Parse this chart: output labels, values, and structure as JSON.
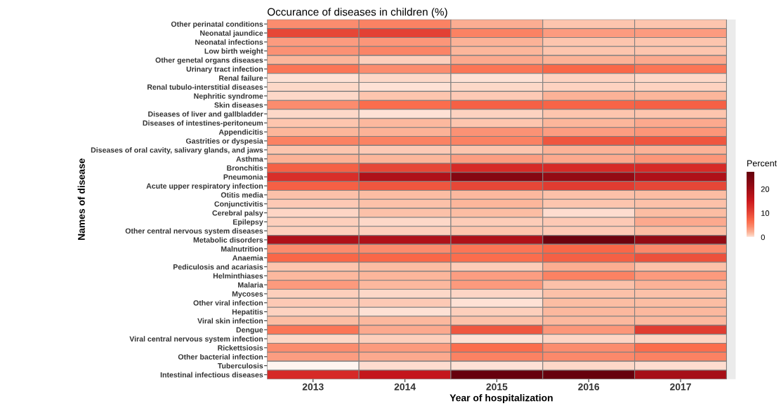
{
  "chart_data": {
    "type": "heatmap",
    "title": "Occurance of diseases in children (%)",
    "xlabel": "Year of hospitalization",
    "ylabel": "Names of disease",
    "clabel": "Percent",
    "categories": [
      "2013",
      "2014",
      "2015",
      "2016",
      "2017"
    ],
    "y_categories": [
      "Other perinatal conditions",
      "Neonatal jaundice",
      "Neonatal infections",
      "Low birth weight",
      "Other genetal organs diseases",
      "Urinary tract infection",
      "Renal failure",
      "Renal tubulo-interstitial diseases",
      "Nephritic syndrome",
      "Skin diseases",
      "Diseases of liver and gallbladder",
      "Diseases of intestines-peritoneum",
      "Appendicitis",
      "Gastrities or dyspesia",
      "Diseases of oral cavity, salivary glands, and jaws",
      "Asthma",
      "Bronchitis",
      "Pneumonia",
      "Acute upper respiratory infection",
      "Otitis media",
      "Conjunctivitis",
      "Cerebral palsy",
      "Epilepsy",
      "Other central nervous system diseases",
      "Metabolic disorders",
      "Malnutrition",
      "Anaemia",
      "Pediculosis and acariasis",
      "Helminthiases",
      "Malaria",
      "Mycoses",
      "Other viral infection",
      "Hepatitis",
      "Viral skin infection",
      "Dengue",
      "Viral central nervous system infection",
      "Rickettsiosis",
      "Other bacterial infection",
      "Tuberculosis",
      "Intestinal infectious diseases"
    ],
    "cells": [
      [
        4.3,
        5,
        2.4,
        1.2,
        1.2
      ],
      [
        10,
        10.5,
        5,
        3.3,
        3.3
      ],
      [
        3.3,
        3.6,
        2.2,
        1.2,
        1.2
      ],
      [
        4,
        4.8,
        2,
        1.2,
        1.2
      ],
      [
        2,
        0.8,
        2.6,
        2.2,
        2.6
      ],
      [
        6,
        4.3,
        6,
        7,
        6
      ],
      [
        0.3,
        0.5,
        0.3,
        0.7,
        0.5
      ],
      [
        0.5,
        0.3,
        0.5,
        0.7,
        0.7
      ],
      [
        0.5,
        1.2,
        1,
        2.2,
        2
      ],
      [
        4.3,
        6.5,
        7.5,
        7.2,
        7.5
      ],
      [
        0.5,
        0.3,
        0.7,
        1.2,
        1.2
      ],
      [
        1.2,
        1.8,
        1.2,
        2,
        2.6
      ],
      [
        2,
        2.2,
        3.8,
        3.2,
        3.6
      ],
      [
        5,
        5,
        5,
        8.5,
        8.5
      ],
      [
        1.2,
        1,
        1.2,
        2.2,
        2.2
      ],
      [
        2.2,
        2,
        3.2,
        2.6,
        3.6
      ],
      [
        7.5,
        10,
        13,
        13,
        13
      ],
      [
        12.5,
        18,
        23,
        21,
        18
      ],
      [
        7.5,
        8.5,
        10,
        11,
        10
      ],
      [
        1.4,
        1.6,
        1.8,
        1.4,
        1.6
      ],
      [
        1,
        1.4,
        2,
        1.2,
        1.4
      ],
      [
        0.6,
        1.4,
        1.6,
        0.4,
        1.6
      ],
      [
        0.8,
        0.5,
        0.9,
        1,
        2.6
      ],
      [
        0.8,
        0.8,
        1.2,
        1,
        1.6
      ],
      [
        18,
        18,
        18,
        26,
        21
      ],
      [
        4.3,
        4.3,
        6,
        7,
        4.5
      ],
      [
        7,
        7,
        6.5,
        7.5,
        9
      ],
      [
        1.2,
        1.6,
        0.9,
        2.4,
        1.4
      ],
      [
        1.8,
        2,
        3.2,
        5,
        3.4
      ],
      [
        3.4,
        1.8,
        3.4,
        1.4,
        2.2
      ],
      [
        0.8,
        0.5,
        0.6,
        1.4,
        1.4
      ],
      [
        1,
        1,
        0.3,
        1.6,
        1.6
      ],
      [
        0.7,
        0.3,
        0.8,
        1.8,
        1.8
      ],
      [
        1.6,
        1.8,
        1.4,
        1.8,
        1.8
      ],
      [
        6,
        2.6,
        8.5,
        3.6,
        11
      ],
      [
        0.5,
        0.8,
        0.3,
        0.6,
        0.6
      ],
      [
        4.3,
        3.4,
        6.5,
        4.3,
        6.5
      ],
      [
        3.2,
        2.6,
        5,
        4.5,
        5
      ],
      [
        0.1,
        0.4,
        0.3,
        0.5,
        0.4
      ],
      [
        13,
        16,
        27,
        27,
        19
      ]
    ],
    "clim": [
      0,
      27
    ],
    "cticks": [
      0,
      10,
      20
    ]
  }
}
